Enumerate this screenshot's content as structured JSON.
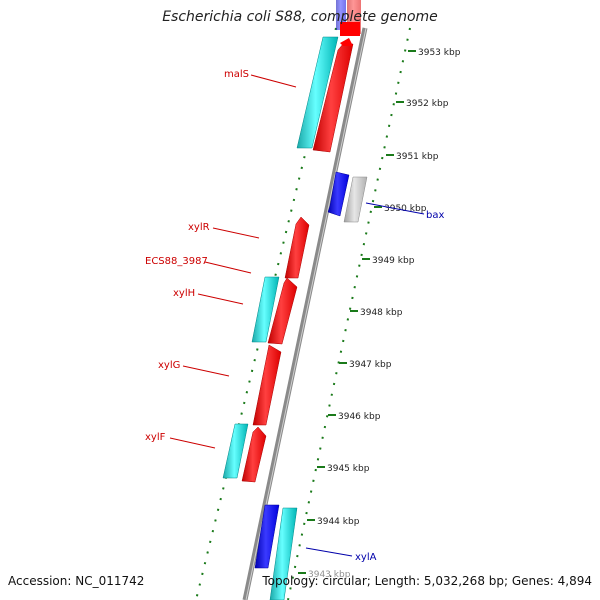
{
  "title": "Escherichia coli S88, complete genome",
  "footer": {
    "accession": "Accession: NC_011742",
    "summary": "Topology: circular; Length: 5,032,268 bp; Genes: 4,894"
  },
  "ticks": [
    {
      "label": "3953 kbp"
    },
    {
      "label": "3952 kbp"
    },
    {
      "label": "3951 kbp"
    },
    {
      "label": "3950 kbp"
    },
    {
      "label": "3949 kbp"
    },
    {
      "label": "3948 kbp"
    },
    {
      "label": "3947 kbp"
    },
    {
      "label": "3946 kbp"
    },
    {
      "label": "3945 kbp"
    },
    {
      "label": "3944 kbp"
    },
    {
      "label": "3943 kbp"
    }
  ],
  "gene_labels": [
    {
      "name": "malS",
      "color": "#cc0000"
    },
    {
      "name": "bax",
      "color": "#0000aa"
    },
    {
      "name": "xylR",
      "color": "#cc0000"
    },
    {
      "name": "ECS88_3987",
      "color": "#cc0000"
    },
    {
      "name": "xylH",
      "color": "#cc0000"
    },
    {
      "name": "xylG",
      "color": "#cc0000"
    },
    {
      "name": "xylF",
      "color": "#cc0000"
    },
    {
      "name": "xylA",
      "color": "#0000aa"
    }
  ],
  "colors": {
    "reverse_gene": "#ff0000",
    "forward_gene": "#0000ff",
    "cds": "#00cccc",
    "pseudo": "#c0c0c0",
    "backbone": "#808080",
    "tick_dots": "#1a7a1a"
  }
}
